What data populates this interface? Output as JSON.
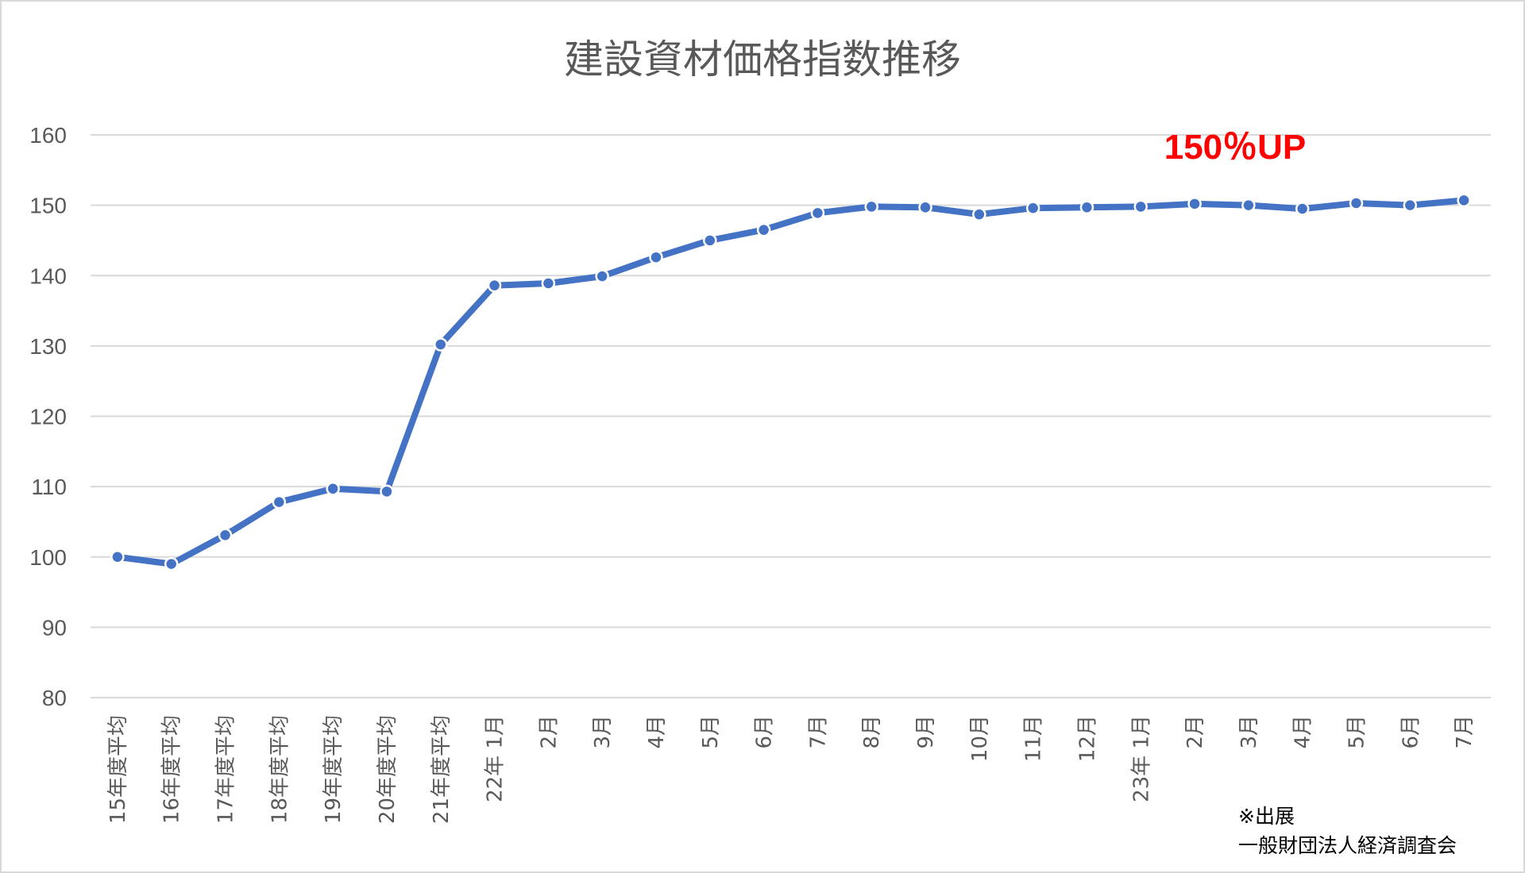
{
  "chart_data": {
    "type": "line",
    "title": "建設資材価格指数推移",
    "xlabel": "",
    "ylabel": "",
    "ylim": [
      80,
      160
    ],
    "yticks": [
      80,
      90,
      100,
      110,
      120,
      130,
      140,
      150,
      160
    ],
    "grid": true,
    "legend": "none",
    "categories": [
      "15年度平均",
      "16年度平均",
      "17年度平均",
      "18年度平均",
      "19年度平均",
      "20年度平均",
      "21年度平均",
      "22年 1月",
      "2月",
      "3月",
      "4月",
      "5月",
      "6月",
      "7月",
      "8月",
      "9月",
      "10月",
      "11月",
      "12月",
      "23年 1月",
      "2月",
      "3月",
      "4月",
      "5月",
      "6月",
      "7月"
    ],
    "series": [
      {
        "values": [
          100.0,
          99.0,
          103.1,
          107.8,
          109.7,
          109.3,
          130.2,
          138.6,
          138.9,
          139.9,
          142.6,
          145.0,
          146.5,
          148.9,
          149.8,
          149.7,
          148.7,
          149.6,
          149.7,
          149.8,
          150.2,
          150.0,
          149.5,
          150.3,
          150.0,
          150.7
        ],
        "color": "#4472c4"
      }
    ],
    "annotation": "150％UP",
    "annotation_color": "#ff0000",
    "source_note": [
      "※出展",
      "一般財団法人経済調査会"
    ]
  }
}
